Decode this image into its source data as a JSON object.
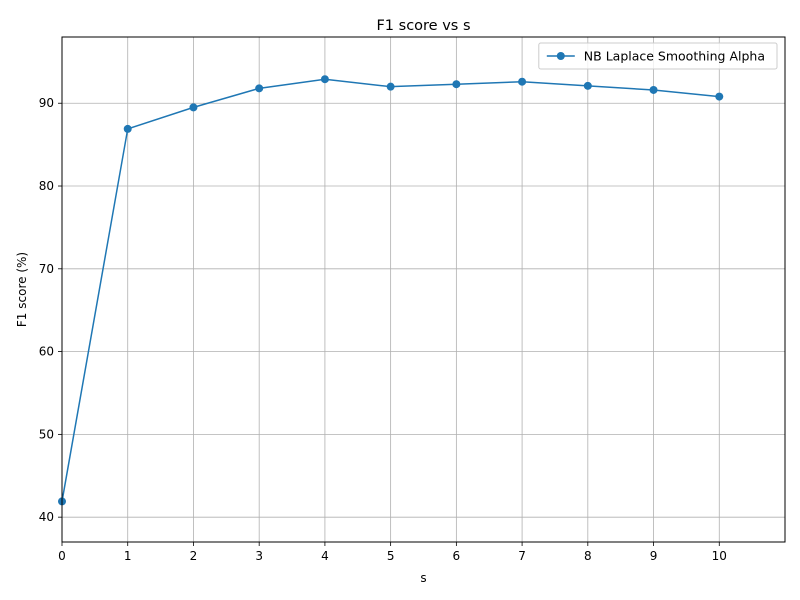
{
  "chart_data": {
    "type": "line",
    "title": "F1 score vs s",
    "xlabel": "s",
    "ylabel": "F1 score (%)",
    "xlim": [
      0,
      11
    ],
    "ylim": [
      37,
      98
    ],
    "xticks": [
      0,
      1,
      2,
      3,
      4,
      5,
      6,
      7,
      8,
      9,
      10
    ],
    "yticks": [
      40,
      50,
      60,
      70,
      80,
      90
    ],
    "grid": true,
    "legend_position": "top-right",
    "series": [
      {
        "name": "NB Laplace Smoothing Alpha",
        "color": "#1f77b4",
        "marker": "circle",
        "x": [
          0,
          1,
          2,
          3,
          4,
          5,
          6,
          7,
          8,
          9,
          10
        ],
        "y": [
          41.9,
          86.9,
          89.5,
          91.8,
          92.9,
          92.0,
          92.3,
          92.6,
          92.1,
          91.6,
          90.8
        ]
      }
    ]
  }
}
